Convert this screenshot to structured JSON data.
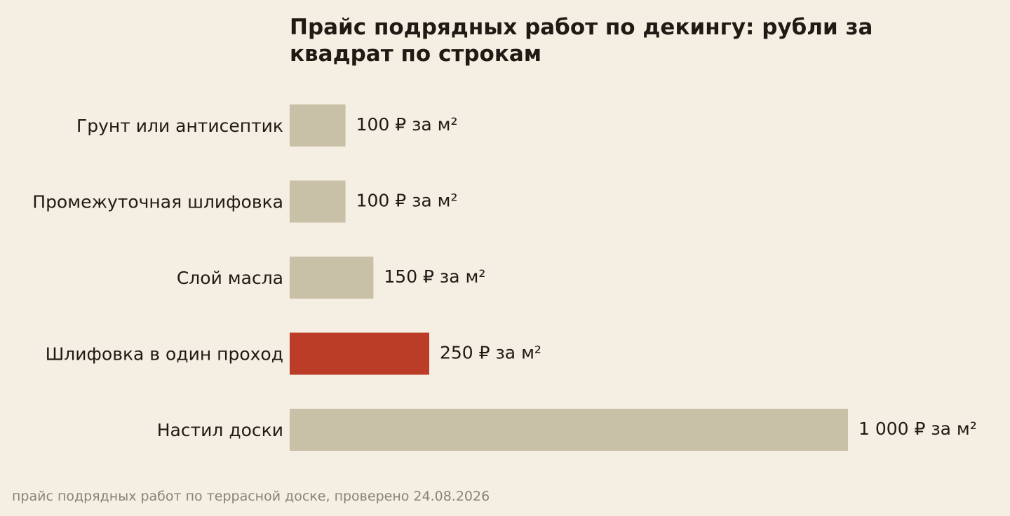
{
  "colors": {
    "background": "#f5efe3",
    "bar_default": "#c9c0a8",
    "bar_highlight": "#bb3d27",
    "text": "#1f1a14",
    "note": "#8a8275"
  },
  "chart_data": {
    "type": "bar",
    "orientation": "horizontal",
    "title": "Прайс подрядных работ по декингу: рубли за квадрат по строкам",
    "categories": [
      "Грунт или антисептик",
      "Промежуточная шлифовка",
      "Слой масла",
      "Шлифовка в один проход",
      "Настил доски"
    ],
    "values": [
      100,
      100,
      150,
      250,
      1000
    ],
    "value_labels": [
      "100 ₽ за м²",
      "100 ₽ за м²",
      "150 ₽ за м²",
      "250 ₽ за м²",
      "1 000 ₽ за м²"
    ],
    "highlighted_category": "Шлифовка в один проход",
    "xlim": [
      0,
      1000
    ],
    "grid": false,
    "legend": "none",
    "xlabel": "",
    "ylabel": ""
  },
  "footer": {
    "note": "прайс подрядных работ по террасной доске, проверено 24.08.2026"
  }
}
